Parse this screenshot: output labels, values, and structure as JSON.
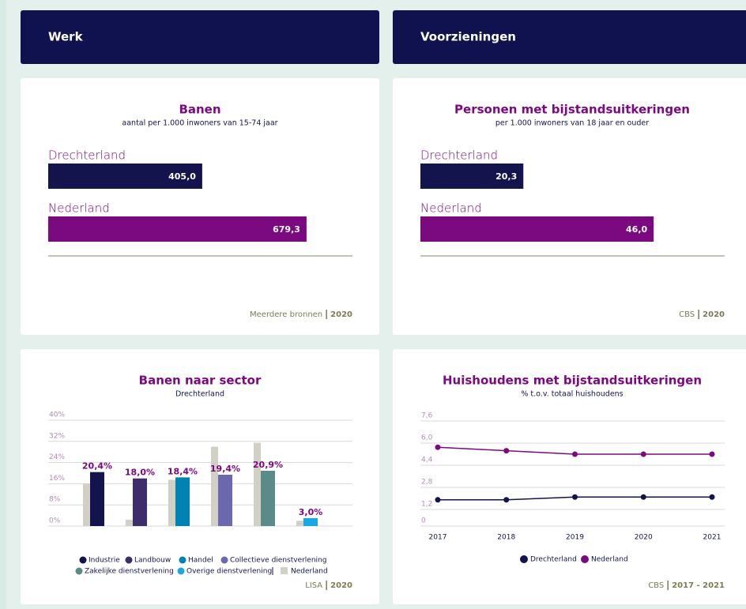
{
  "headers": [
    "Werk",
    "Voorzieningen"
  ],
  "chart_data": [
    {
      "type": "hbar",
      "title": "Banen",
      "subtitle": "aantal per 1.000 inwoners van 15-74 jaar",
      "categories": [
        "Drechterland",
        "Nederland"
      ],
      "values": [
        405.0,
        679.3
      ],
      "value_labels": [
        "405,0",
        "679,3"
      ],
      "colors": [
        "#13134e",
        "#7b0a80"
      ],
      "xlim": [
        0,
        800
      ],
      "source": "Meerdere bronnen",
      "source_year": "2020"
    },
    {
      "type": "hbar",
      "title": "Personen met bijstandsuitkeringen",
      "subtitle": "per 1.000 inwoners van 18 jaar en ouder",
      "categories": [
        "Drechterland",
        "Nederland"
      ],
      "values": [
        20.3,
        46.0
      ],
      "value_labels": [
        "20,3",
        "46,0"
      ],
      "colors": [
        "#13134e",
        "#7b0a80"
      ],
      "xlim": [
        0,
        60
      ],
      "source": "CBS",
      "source_year": "2020"
    },
    {
      "type": "grouped_bar",
      "title": "Banen naar sector",
      "categories": [
        "Industrie",
        "Landbouw",
        "Handel",
        "Collectieve dienstverlening",
        "Zakelijke dienstverlening",
        "Overige dienstverlening"
      ],
      "series": [
        {
          "name": "Drechterland",
          "colors": [
            "#13134e",
            "#3e2d6b",
            "#0082b3",
            "#6b68ad",
            "#5a8a8a",
            "#1ba8e0"
          ],
          "values": [
            20.4,
            18.0,
            18.4,
            19.4,
            20.9,
            3.0
          ],
          "value_labels": [
            "20,4%",
            "18,0%",
            "18,4%",
            "19,4%",
            "20,9%",
            "3,0%"
          ]
        },
        {
          "name": "Nederland",
          "color": "#d2d0c4",
          "values": [
            16.0,
            2.4,
            17.5,
            30.0,
            31.5,
            2.0
          ]
        }
      ],
      "ylim": [
        0,
        40
      ],
      "yticks": [
        {
          "value": 0,
          "label": "0%"
        },
        {
          "value": 8,
          "label": "8%"
        },
        {
          "value": 16,
          "label": "16%"
        },
        {
          "value": 24,
          "label": "24%"
        },
        {
          "value": 32,
          "label": "32%"
        },
        {
          "value": 40,
          "label": "40%"
        }
      ],
      "grid": true,
      "source": "LISA",
      "source_year": "2020"
    },
    {
      "type": "line",
      "title": "Huishoudens met bijstandsuitkeringen",
      "subtitle": "% t.o.v. totaal huishoudens",
      "categories": [
        "2017",
        "2018",
        "2019",
        "2020",
        "2021"
      ],
      "series": [
        {
          "name": "Drechterland",
          "color": "#13134e",
          "values": [
            1.9,
            1.9,
            2.1,
            2.1,
            2.1
          ]
        },
        {
          "name": "Nederland",
          "color": "#7b0a80",
          "values": [
            5.7,
            5.45,
            5.2,
            5.2,
            5.2
          ]
        }
      ],
      "ylim": [
        0,
        7.6
      ],
      "yticks": [
        0,
        {
          "value": 1.2,
          "label": "1,2"
        },
        {
          "value": 2.8,
          "label": "2,8"
        },
        {
          "value": 4.4,
          "label": "4,4"
        },
        {
          "value": 6.0,
          "label": "6,0"
        },
        {
          "value": 7.6,
          "label": "7,6"
        }
      ],
      "grid": true,
      "source": "CBS",
      "source_year": "2017 - 2021"
    }
  ]
}
